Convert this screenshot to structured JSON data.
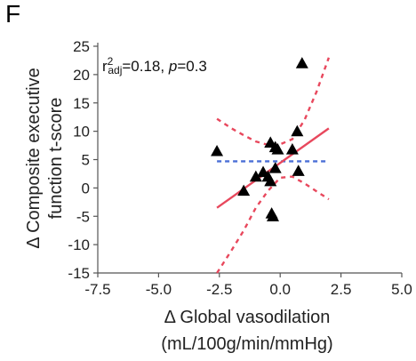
{
  "panel_label": "F",
  "chart_data": {
    "type": "scatter",
    "title": "",
    "xlabel_line1": "Δ Global vasodilation",
    "xlabel_line2": "(mL/100g/min/mmHg)",
    "ylabel_line1": "Δ Composite executive",
    "ylabel_line2": "function t-score",
    "xlim": [
      -7.5,
      5.0
    ],
    "ylim": [
      -15,
      25
    ],
    "xticks": [
      -7.5,
      -5.0,
      -2.5,
      0.0,
      2.5,
      5.0
    ],
    "xtick_labels": [
      "-7.5",
      "-5.0",
      "-2.5",
      "0.0",
      "2.5",
      "5.0"
    ],
    "yticks": [
      -15,
      -10,
      -5,
      0,
      5,
      10,
      15,
      20,
      25
    ],
    "ytick_labels": [
      "-15",
      "-10",
      "-5",
      "0",
      "5",
      "10",
      "15",
      "20",
      "25"
    ],
    "grid": false,
    "annotation": {
      "r": "r",
      "sup": "2",
      "sub": "adj",
      "r_value": "=0.18, ",
      "p": "p",
      "p_value": "=0.3"
    },
    "points": [
      {
        "x": -2.6,
        "y": 6.5
      },
      {
        "x": -1.5,
        "y": -0.5
      },
      {
        "x": -1.0,
        "y": 2.0
      },
      {
        "x": -0.7,
        "y": 2.8
      },
      {
        "x": -0.5,
        "y": 2.0
      },
      {
        "x": -0.4,
        "y": 8.0
      },
      {
        "x": -0.4,
        "y": 1.2
      },
      {
        "x": -0.35,
        "y": -4.5
      },
      {
        "x": -0.3,
        "y": -5.0
      },
      {
        "x": -0.2,
        "y": 3.5
      },
      {
        "x": -0.2,
        "y": 7.2
      },
      {
        "x": -0.1,
        "y": 6.8
      },
      {
        "x": 0.5,
        "y": 6.8
      },
      {
        "x": 0.7,
        "y": 10.0
      },
      {
        "x": 0.75,
        "y": 3.0
      },
      {
        "x": 0.9,
        "y": 22.0
      }
    ],
    "fit_line": {
      "x": [
        -2.6,
        2.0
      ],
      "y": [
        -3.5,
        10.5
      ],
      "color": "#e8485d"
    },
    "ci_upper": {
      "x": [
        -2.6,
        -2.0,
        -1.5,
        -1.0,
        -0.5,
        0.0,
        0.5,
        1.0,
        1.5,
        2.0
      ],
      "y": [
        12.2,
        10.5,
        9.3,
        8.2,
        7.6,
        7.7,
        8.6,
        12.0,
        17.0,
        23.0
      ],
      "color": "#e8485d"
    },
    "ci_lower": {
      "x": [
        -2.6,
        -2.3,
        -2.0,
        -1.5,
        -1.0,
        -0.5,
        0.0,
        0.5,
        1.0,
        1.5,
        2.0
      ],
      "y": [
        -15.0,
        -13.0,
        -11.0,
        -7.5,
        -3.5,
        -0.5,
        1.8,
        2.0,
        0.8,
        -0.6,
        -2.0
      ],
      "color": "#e8485d"
    },
    "mean_line": {
      "x": [
        -2.6,
        2.0
      ],
      "y": [
        4.7,
        4.7
      ],
      "color": "#4a6fd6"
    },
    "marker_color": "#000000",
    "axis_color": "#555555"
  }
}
